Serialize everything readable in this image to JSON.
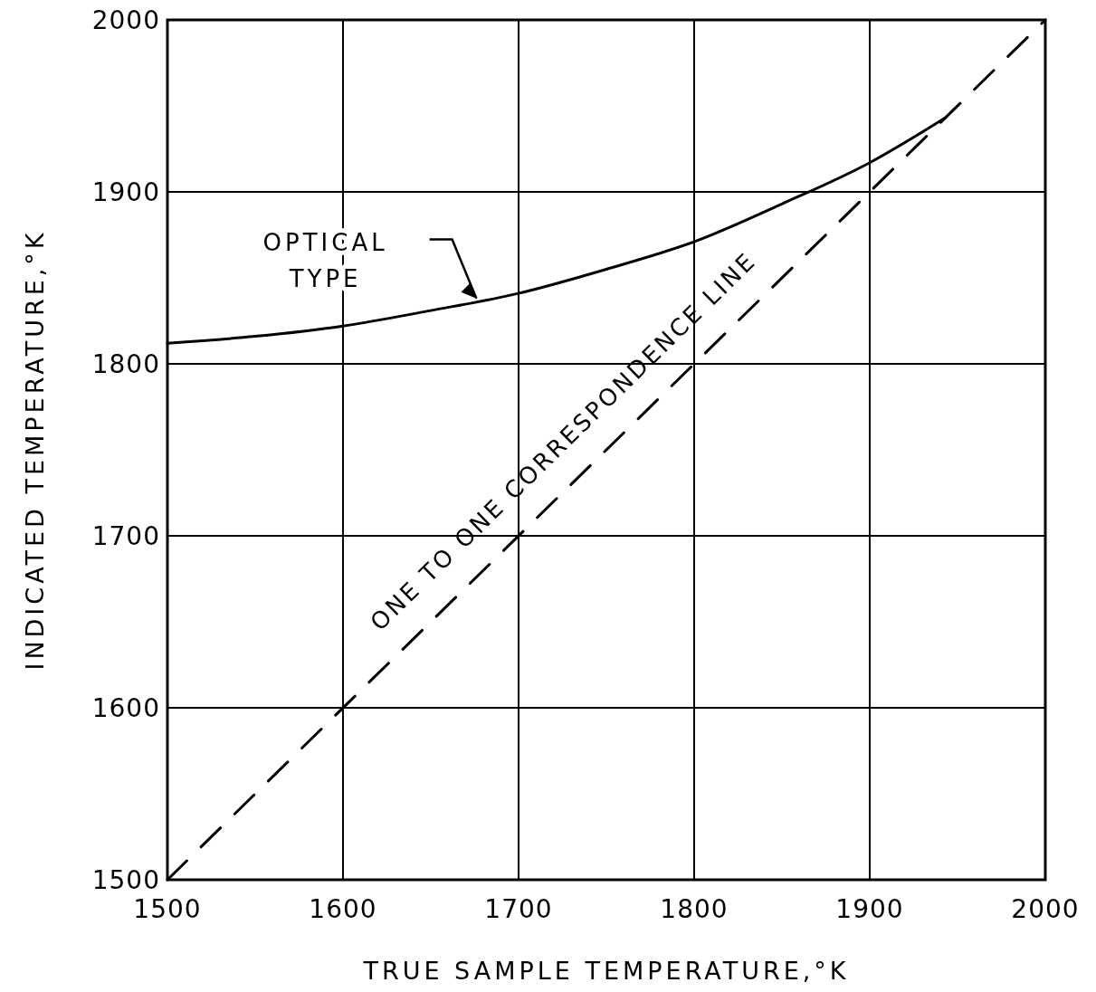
{
  "chart_data": {
    "type": "line",
    "xlabel": "TRUE SAMPLE TEMPERATURE,°K",
    "ylabel": "INDICATED TEMPERATURE,°K",
    "xlim": [
      1500,
      2000
    ],
    "ylim": [
      1500,
      2000
    ],
    "xticks": [
      1500,
      1600,
      1700,
      1800,
      1900,
      2000
    ],
    "yticks": [
      1500,
      1600,
      1700,
      1800,
      1900,
      2000
    ],
    "grid": true,
    "marker": "none",
    "series": [
      {
        "name": "OPTICAL TYPE",
        "color": "#000000",
        "line_style": "solid",
        "x": [
          1500,
          1550,
          1600,
          1650,
          1700,
          1750,
          1800,
          1850,
          1900,
          1943
        ],
        "values": [
          1812,
          1816,
          1822,
          1831,
          1841,
          1855,
          1871,
          1893,
          1917,
          1943
        ]
      },
      {
        "name": "ONE TO ONE CORRESPONDENCE LINE",
        "color": "#000000",
        "line_style": "dashed",
        "x": [
          1500,
          2000
        ],
        "values": [
          1500,
          2000
        ]
      }
    ]
  }
}
